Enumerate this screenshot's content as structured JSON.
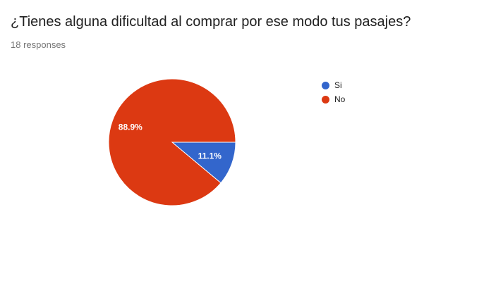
{
  "question": {
    "title": "¿Tienes alguna dificultad al comprar por ese modo tus pasajes?",
    "responses_text": "18 responses"
  },
  "chart_data": {
    "type": "pie",
    "categories": [
      "Si",
      "No"
    ],
    "values": [
      11.1,
      88.9
    ],
    "labels": [
      "11.1%",
      "88.9%"
    ],
    "colors": [
      "#3366cc",
      "#dc3912"
    ],
    "legend_position": "right"
  }
}
